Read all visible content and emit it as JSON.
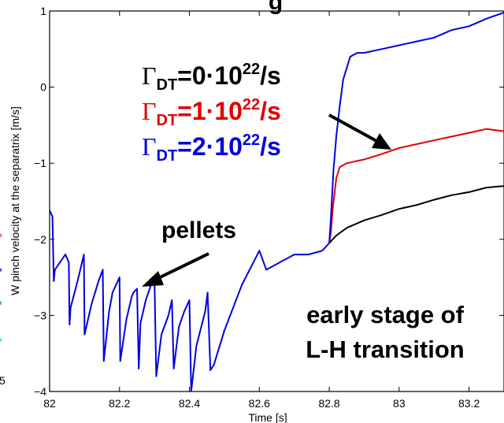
{
  "chart_data": {
    "type": "line",
    "title": "",
    "title_fragment": "g",
    "xlabel": "Time [s]",
    "ylabel": "W pinch velocity at the separatrix [m/s]",
    "xlim": [
      82.0,
      83.3
    ],
    "ylim": [
      -4,
      1
    ],
    "xticks": [
      "82",
      "82.2",
      "82.4",
      "82.6",
      "82.8",
      "83",
      "83.2"
    ],
    "xtick_values": [
      82.0,
      82.2,
      82.4,
      82.6,
      82.8,
      83.0,
      83.2
    ],
    "yticks": [
      "1",
      "0",
      "−1",
      "−2",
      "−3",
      "−4"
    ],
    "ytick_values": [
      1,
      0,
      -1,
      -2,
      -3,
      -4
    ],
    "grid": false,
    "left_margin_markers": [
      {
        "symbol": "*",
        "color": "#ff2020"
      },
      {
        "symbol": "*",
        "color": "#0000cc"
      },
      {
        "symbol": "*",
        "color": "#00aa00"
      },
      {
        "symbol": "*",
        "color": "#00cccc"
      }
    ],
    "left_margin_text": "5",
    "legend": [
      {
        "prefix": "Γ",
        "sub": "DT",
        "text": "=0·10",
        "sup": "22",
        "unit": "/s",
        "color": "#000000"
      },
      {
        "prefix": "Γ",
        "sub": "DT",
        "text": "=1·10",
        "sup": "22",
        "unit": "/s",
        "color": "#e00000"
      },
      {
        "prefix": "Γ",
        "sub": "DT",
        "text": "=2·10",
        "sup": "22",
        "unit": "/s",
        "color": "#0000dd"
      }
    ],
    "annotations": {
      "pellets": "pellets",
      "stage_line1": "early stage of",
      "stage_line2": "L-H transition"
    },
    "series": [
      {
        "color": "#0000dd",
        "x": [
          82.0,
          82.008,
          82.012,
          82.015,
          82.03,
          82.045,
          82.055,
          82.057,
          82.06,
          82.08,
          82.098,
          82.1,
          82.12,
          82.14,
          82.152,
          82.155,
          82.17,
          82.18,
          82.2,
          82.202,
          82.22,
          82.235,
          82.24,
          82.25,
          82.255,
          82.26,
          82.275,
          82.29,
          82.3,
          82.305,
          82.32,
          82.34,
          82.35,
          82.355,
          82.37,
          82.385,
          82.4,
          82.405,
          82.42,
          82.445,
          82.452,
          82.46,
          82.47,
          82.5,
          82.55,
          82.6,
          82.62,
          82.64,
          82.66,
          82.7,
          82.74,
          82.78,
          82.8,
          82.805,
          82.812,
          82.82,
          82.83,
          82.84,
          82.86,
          82.88,
          82.9,
          82.95,
          83.0,
          83.05,
          83.1,
          83.15,
          83.2,
          83.25,
          83.3
        ],
        "y": [
          -1.62,
          -1.7,
          -2.55,
          -2.4,
          -2.3,
          -2.2,
          -2.3,
          -3.12,
          -2.9,
          -2.55,
          -2.2,
          -3.25,
          -2.85,
          -2.55,
          -2.4,
          -3.6,
          -2.95,
          -2.7,
          -2.5,
          -3.6,
          -3.05,
          -2.75,
          -2.7,
          -2.65,
          -3.7,
          -3.1,
          -2.8,
          -2.6,
          -2.55,
          -3.8,
          -3.25,
          -3.0,
          -2.8,
          -3.7,
          -3.15,
          -2.95,
          -2.8,
          -4.0,
          -3.4,
          -2.95,
          -2.7,
          -3.72,
          -3.65,
          -3.2,
          -2.6,
          -2.15,
          -2.4,
          -2.35,
          -2.3,
          -2.2,
          -2.2,
          -2.15,
          -2.05,
          -1.7,
          -1.1,
          -0.65,
          -0.25,
          0.1,
          0.4,
          0.45,
          0.45,
          0.5,
          0.55,
          0.6,
          0.65,
          0.75,
          0.8,
          0.9,
          0.98
        ]
      },
      {
        "color": "#e00000",
        "x": [
          82.8,
          82.805,
          82.81,
          82.82,
          82.83,
          82.85,
          82.9,
          82.95,
          83.0,
          83.05,
          83.1,
          83.15,
          83.2,
          83.25,
          83.3
        ],
        "y": [
          -2.05,
          -1.9,
          -1.6,
          -1.2,
          -1.05,
          -1.0,
          -0.95,
          -0.88,
          -0.8,
          -0.75,
          -0.7,
          -0.65,
          -0.6,
          -0.55,
          -0.58
        ]
      },
      {
        "color": "#000000",
        "x": [
          82.8,
          82.82,
          82.85,
          82.9,
          82.95,
          83.0,
          83.05,
          83.1,
          83.15,
          83.2,
          83.25,
          83.3
        ],
        "y": [
          -2.05,
          -1.95,
          -1.85,
          -1.75,
          -1.68,
          -1.6,
          -1.55,
          -1.48,
          -1.42,
          -1.38,
          -1.32,
          -1.3
        ]
      }
    ]
  }
}
